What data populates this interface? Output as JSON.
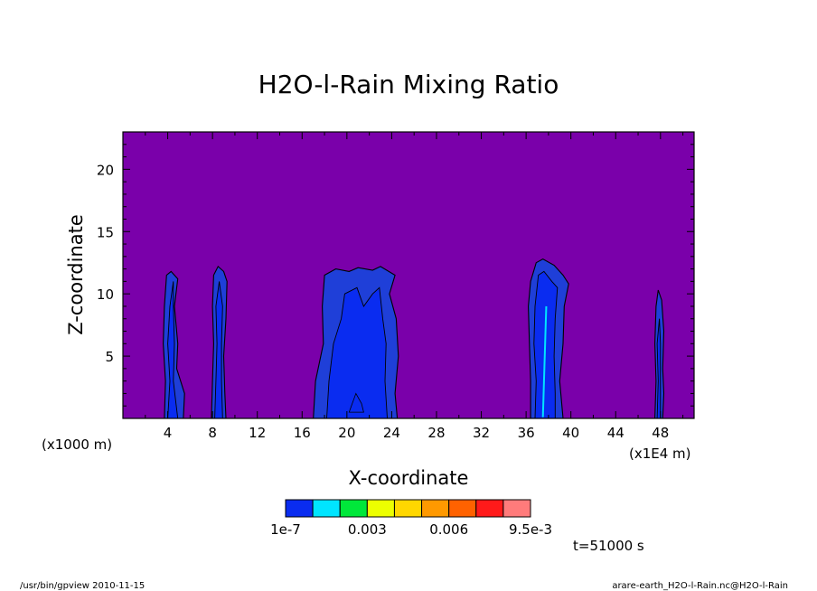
{
  "chart_data": {
    "type": "heatmap",
    "title": "H2O-l-Rain Mixing Ratio",
    "xlabel": "X-coordinate",
    "ylabel": "Z-coordinate",
    "x_unit_left": "(x1000 m)",
    "x_unit_right": "(x1E4 m)",
    "xlim": [
      0,
      51
    ],
    "ylim": [
      0,
      23
    ],
    "x_ticks": [
      4,
      8,
      12,
      16,
      20,
      24,
      28,
      32,
      36,
      40,
      44,
      48
    ],
    "x_tick_labels": [
      "4",
      "8",
      "12",
      "16",
      "20",
      "24",
      "28",
      "32",
      "36",
      "40",
      "44",
      "48"
    ],
    "y_ticks": [
      5,
      10,
      15,
      20
    ],
    "y_tick_labels": [
      "5",
      "10",
      "15",
      "20"
    ],
    "background_color": "#7a00aa",
    "colorbar": {
      "colors": [
        "#0a2cf0",
        "#00e5ff",
        "#00e83a",
        "#ecff00",
        "#ffd700",
        "#ff9900",
        "#ff6200",
        "#ff1a1a",
        "#ff7b7b"
      ],
      "labels": [
        "1e-7",
        "0.003",
        "0.006",
        "9.5e-3"
      ],
      "label_positions": [
        0,
        3,
        6,
        9
      ]
    },
    "time_label": "t=51000 s",
    "cells": [
      {
        "name": "cell-4",
        "outer": [
          [
            3.7,
            0
          ],
          [
            3.8,
            3
          ],
          [
            3.6,
            6
          ],
          [
            3.7,
            9
          ],
          [
            3.9,
            11.5
          ],
          [
            4.3,
            11.8
          ],
          [
            4.9,
            11.2
          ],
          [
            4.6,
            9
          ],
          [
            4.9,
            6
          ],
          [
            4.8,
            4
          ],
          [
            5.5,
            2
          ],
          [
            5.4,
            0
          ]
        ],
        "inner": [
          [
            4.0,
            0
          ],
          [
            4.2,
            3
          ],
          [
            4.0,
            6
          ],
          [
            4.2,
            9
          ],
          [
            4.5,
            11
          ],
          [
            4.5,
            9
          ],
          [
            4.6,
            6
          ],
          [
            4.5,
            3
          ],
          [
            4.9,
            0
          ]
        ]
      },
      {
        "name": "cell-8",
        "outer": [
          [
            7.9,
            0
          ],
          [
            8.0,
            3
          ],
          [
            8.1,
            6
          ],
          [
            8.0,
            9
          ],
          [
            8.1,
            11.5
          ],
          [
            8.5,
            12.2
          ],
          [
            9.0,
            11.8
          ],
          [
            9.3,
            11.0
          ],
          [
            9.2,
            8
          ],
          [
            9.0,
            5
          ],
          [
            9.1,
            2
          ],
          [
            9.2,
            0
          ]
        ],
        "inner": [
          [
            8.2,
            0
          ],
          [
            8.3,
            3
          ],
          [
            8.4,
            6
          ],
          [
            8.3,
            9
          ],
          [
            8.6,
            11
          ],
          [
            8.9,
            9
          ],
          [
            8.8,
            6
          ],
          [
            8.8,
            3
          ],
          [
            8.9,
            0
          ]
        ]
      },
      {
        "name": "cell-20",
        "outer": [
          [
            17.0,
            0
          ],
          [
            17.2,
            3
          ],
          [
            17.9,
            6
          ],
          [
            17.8,
            9
          ],
          [
            18.0,
            11.5
          ],
          [
            19.0,
            12.0
          ],
          [
            20.2,
            11.8
          ],
          [
            21.0,
            12.1
          ],
          [
            22.3,
            11.9
          ],
          [
            23.0,
            12.2
          ],
          [
            24.3,
            11.5
          ],
          [
            23.8,
            10
          ],
          [
            24.4,
            8
          ],
          [
            24.6,
            5
          ],
          [
            24.3,
            2
          ],
          [
            24.5,
            0
          ]
        ],
        "inner": [
          [
            18.2,
            0
          ],
          [
            18.4,
            3
          ],
          [
            18.8,
            6
          ],
          [
            19.5,
            8
          ],
          [
            19.8,
            10
          ],
          [
            20.9,
            10.5
          ],
          [
            21.5,
            9
          ],
          [
            22.3,
            10
          ],
          [
            22.9,
            10.5
          ],
          [
            23.2,
            8
          ],
          [
            23.5,
            6
          ],
          [
            23.4,
            3
          ],
          [
            23.6,
            0
          ]
        ],
        "core": [
          [
            20.2,
            0.5
          ],
          [
            20.8,
            2
          ],
          [
            21.3,
            1.2
          ],
          [
            21.5,
            0.5
          ]
        ]
      },
      {
        "name": "cell-38",
        "outer": [
          [
            36.4,
            0
          ],
          [
            36.4,
            3
          ],
          [
            36.3,
            6
          ],
          [
            36.2,
            9
          ],
          [
            36.4,
            11
          ],
          [
            36.9,
            12.5
          ],
          [
            37.5,
            12.8
          ],
          [
            38.5,
            12.3
          ],
          [
            39.3,
            11.5
          ],
          [
            39.8,
            10.8
          ],
          [
            39.4,
            9
          ],
          [
            39.3,
            6
          ],
          [
            39.0,
            3
          ],
          [
            39.3,
            0
          ]
        ],
        "inner": [
          [
            36.8,
            0
          ],
          [
            36.9,
            3
          ],
          [
            36.7,
            6
          ],
          [
            36.8,
            9
          ],
          [
            37.1,
            11.5
          ],
          [
            37.6,
            11.8
          ],
          [
            38.3,
            11
          ],
          [
            38.8,
            10.5
          ],
          [
            38.6,
            8
          ],
          [
            38.5,
            5
          ],
          [
            38.6,
            2
          ],
          [
            38.6,
            0
          ]
        ],
        "streak": [
          [
            37.5,
            0.1
          ],
          [
            37.8,
            9
          ]
        ]
      },
      {
        "name": "cell-48",
        "outer": [
          [
            47.5,
            0
          ],
          [
            47.6,
            3
          ],
          [
            47.5,
            6
          ],
          [
            47.6,
            9
          ],
          [
            47.8,
            10.3
          ],
          [
            48.1,
            9.5
          ],
          [
            48.3,
            7
          ],
          [
            48.2,
            4
          ],
          [
            48.3,
            2
          ],
          [
            48.2,
            0
          ]
        ],
        "inner": [
          [
            47.7,
            0
          ],
          [
            47.8,
            3
          ],
          [
            47.7,
            6
          ],
          [
            47.9,
            8
          ],
          [
            48.0,
            6
          ],
          [
            48.0,
            3
          ],
          [
            48.0,
            0
          ]
        ]
      }
    ]
  },
  "footer": {
    "left": "/usr/bin/gpview  2010-11-15",
    "right": "arare-earth_H2O-l-Rain.nc@H2O-l-Rain"
  }
}
